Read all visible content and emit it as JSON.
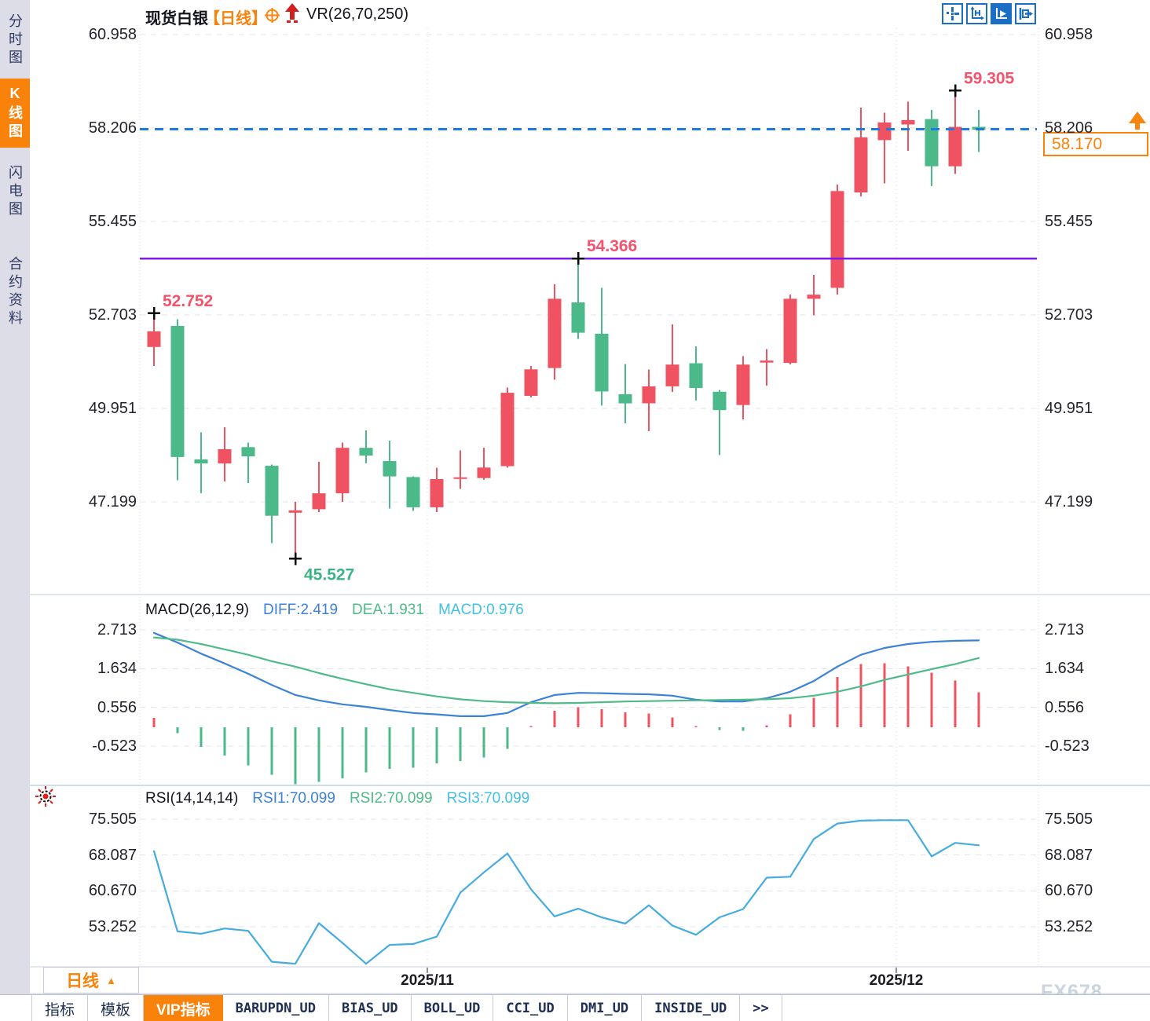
{
  "app": {
    "watermark": "FX678"
  },
  "colors": {
    "up_red": "#ef5362",
    "down_green": "#4bb989",
    "accent_orange": "#f8820a",
    "purple_line": "#7c1ce6",
    "current_price_blue": "#1c7ce0",
    "diff_blue": "#3b82d8",
    "dea_green": "#4fba8a",
    "macd_cyan": "#3fc1e3",
    "rsi_line": "#46abdf",
    "annotation_red": "#f2546e",
    "annotation_green": "#3db385",
    "toolbar_blue": "#1a6fc4",
    "grid": "#e3e4ec",
    "marker_black": "#0a0a0a"
  },
  "sidebar": {
    "items": [
      {
        "label": "分时图",
        "name": "minute-chart",
        "active": false
      },
      {
        "label": "K线图",
        "name": "kline-chart",
        "active": true
      },
      {
        "label": "闪电图",
        "name": "flash-chart",
        "active": false
      },
      {
        "label": "合约资料",
        "name": "contract-info",
        "active": false
      }
    ]
  },
  "header": {
    "symbol": "现货白银",
    "period": "【日线】",
    "indicator": "VR(26,70,250)"
  },
  "toolbar": {
    "icons": [
      "move-crosshair",
      "axis-scale",
      "axis-play",
      "export-right"
    ]
  },
  "price_tag": {
    "value": "58.170"
  },
  "axis": {
    "price_labels": [
      "60.958",
      "58.206",
      "55.455",
      "52.703",
      "49.951",
      "47.199"
    ],
    "macd_labels": [
      "2.713",
      "1.634",
      "0.556",
      "-0.523"
    ],
    "rsi_labels": [
      "75.505",
      "68.087",
      "60.670",
      "53.252"
    ]
  },
  "panes": {
    "macd_legend": {
      "title": "MACD(26,12,9)",
      "diff": "DIFF:2.419",
      "dea": "DEA:1.931",
      "macd": "MACD:0.976"
    },
    "rsi_legend": {
      "title": "RSI(14,14,14)",
      "rsi1": "RSI1:70.099",
      "rsi2": "RSI2:70.099",
      "rsi3": "RSI3:70.099"
    }
  },
  "footer": {
    "period": "日线",
    "tabs": [
      {
        "label": "指标",
        "name": "indicator",
        "mono": false,
        "active": false
      },
      {
        "label": "模板",
        "name": "template",
        "mono": false,
        "active": false
      },
      {
        "label": "VIP指标",
        "name": "vip-indicator",
        "mono": false,
        "active": true
      },
      {
        "label": "BARUPDN_UD",
        "name": "barupdn",
        "mono": true,
        "active": false
      },
      {
        "label": "BIAS_UD",
        "name": "bias",
        "mono": true,
        "active": false
      },
      {
        "label": "BOLL_UD",
        "name": "boll",
        "mono": true,
        "active": false
      },
      {
        "label": "CCI_UD",
        "name": "cci",
        "mono": true,
        "active": false
      },
      {
        "label": "DMI_UD",
        "name": "dmi",
        "mono": true,
        "active": false
      },
      {
        "label": "INSIDE_UD",
        "name": "inside",
        "mono": true,
        "active": false
      },
      {
        "label": ">>",
        "name": "more",
        "mono": true,
        "active": false
      }
    ]
  },
  "chart_data": {
    "type": "candlestick",
    "symbol": "现货白银",
    "period": "日线",
    "price_axis": [
      60.958,
      58.206,
      55.455,
      52.703,
      49.951,
      47.199
    ],
    "candles": [
      [
        51.76,
        52.75,
        51.2,
        52.22
      ],
      [
        52.38,
        52.57,
        47.83,
        48.52
      ],
      [
        48.45,
        49.25,
        47.45,
        48.33
      ],
      [
        48.33,
        49.4,
        47.8,
        48.75
      ],
      [
        48.81,
        48.95,
        47.75,
        48.54
      ],
      [
        48.26,
        48.3,
        45.98,
        46.79
      ],
      [
        46.88,
        47.2,
        45.53,
        46.95
      ],
      [
        46.98,
        48.38,
        46.9,
        47.45
      ],
      [
        47.45,
        48.95,
        47.2,
        48.79
      ],
      [
        48.79,
        49.3,
        48.33,
        48.56
      ],
      [
        48.4,
        49.0,
        47.0,
        47.95
      ],
      [
        47.93,
        47.95,
        46.93,
        47.04
      ],
      [
        47.04,
        48.21,
        46.9,
        47.87
      ],
      [
        47.9,
        48.71,
        47.58,
        47.92
      ],
      [
        47.9,
        48.79,
        47.85,
        48.21
      ],
      [
        48.25,
        50.56,
        48.2,
        50.41
      ],
      [
        50.32,
        51.2,
        50.27,
        51.1
      ],
      [
        51.14,
        53.61,
        50.79,
        53.18
      ],
      [
        53.07,
        54.37,
        52.0,
        52.18
      ],
      [
        52.15,
        53.5,
        50.03,
        50.45
      ],
      [
        50.37,
        51.26,
        49.51,
        50.1
      ],
      [
        50.1,
        51.09,
        49.28,
        50.6
      ],
      [
        50.6,
        52.43,
        50.44,
        51.24
      ],
      [
        51.28,
        51.78,
        50.18,
        50.55
      ],
      [
        50.44,
        50.5,
        48.57,
        49.9
      ],
      [
        50.05,
        51.49,
        49.63,
        51.24
      ],
      [
        51.3,
        51.7,
        50.62,
        51.36
      ],
      [
        51.29,
        53.3,
        51.25,
        53.18
      ],
      [
        53.18,
        53.88,
        52.69,
        53.3
      ],
      [
        53.5,
        56.54,
        53.3,
        56.35
      ],
      [
        56.31,
        58.81,
        56.19,
        57.93
      ],
      [
        57.85,
        58.66,
        56.58,
        58.37
      ],
      [
        58.31,
        58.98,
        57.54,
        58.44
      ],
      [
        58.47,
        58.74,
        56.5,
        57.08
      ],
      [
        57.08,
        59.3,
        56.85,
        58.24
      ],
      [
        58.24,
        58.74,
        57.5,
        58.16
      ]
    ],
    "annotations": [
      {
        "index": 0,
        "price": 52.752,
        "label": "52.752",
        "type": "high"
      },
      {
        "index": 6,
        "price": 45.527,
        "label": "45.527",
        "type": "low"
      },
      {
        "index": 18,
        "price": 54.366,
        "label": "54.366",
        "type": "high"
      },
      {
        "index": 34,
        "price": 59.305,
        "label": "59.305",
        "type": "high"
      }
    ],
    "purple_level": 54.366,
    "current_price": 58.17,
    "x_axis_labels": [
      {
        "label": "2025/11",
        "index": 11.6
      },
      {
        "label": "2025/12",
        "index": 31.5
      }
    ],
    "macd": {
      "params": "26,12,9",
      "axis": [
        2.713,
        1.634,
        0.556,
        -0.523
      ],
      "current": {
        "diff": 2.419,
        "dea": 1.931,
        "macd": 0.976
      },
      "diff": [
        2.63,
        2.36,
        2.05,
        1.78,
        1.49,
        1.18,
        0.9,
        0.75,
        0.64,
        0.57,
        0.48,
        0.4,
        0.36,
        0.31,
        0.31,
        0.4,
        0.7,
        0.9,
        0.96,
        0.95,
        0.93,
        0.92,
        0.88,
        0.77,
        0.72,
        0.72,
        0.81,
        0.99,
        1.29,
        1.69,
        2.02,
        2.21,
        2.32,
        2.38,
        2.41,
        2.42
      ],
      "dea": [
        2.5,
        2.44,
        2.32,
        2.17,
        2.02,
        1.84,
        1.69,
        1.51,
        1.35,
        1.2,
        1.06,
        0.96,
        0.86,
        0.78,
        0.73,
        0.7,
        0.68,
        0.67,
        0.68,
        0.7,
        0.72,
        0.73,
        0.74,
        0.75,
        0.76,
        0.77,
        0.78,
        0.81,
        0.88,
        0.99,
        1.14,
        1.32,
        1.47,
        1.62,
        1.76,
        1.93
      ],
      "hist": [
        0.26,
        -0.16,
        -0.54,
        -0.78,
        -1.06,
        -1.32,
        -1.58,
        -1.52,
        -1.42,
        -1.26,
        -1.16,
        -1.12,
        -1.0,
        -0.94,
        -0.84,
        -0.6,
        0.04,
        0.46,
        0.56,
        0.5,
        0.42,
        0.38,
        0.28,
        0.04,
        -0.08,
        -0.1,
        0.06,
        0.36,
        0.82,
        1.4,
        1.76,
        1.78,
        1.7,
        1.52,
        1.3,
        0.98
      ]
    },
    "rsi": {
      "params": "14,14,14",
      "axis": [
        75.505,
        68.087,
        60.67,
        53.252
      ],
      "current": 70.099,
      "values": [
        68.9,
        52.3,
        51.8,
        52.9,
        52.4,
        46.0,
        45.6,
        54.0,
        49.9,
        45.6,
        49.5,
        49.7,
        51.2,
        60.3,
        64.5,
        68.4,
        61.0,
        55.4,
        57.0,
        55.2,
        53.9,
        57.7,
        53.5,
        51.6,
        55.2,
        56.9,
        63.4,
        63.6,
        71.4,
        74.6,
        75.2,
        75.3,
        75.3,
        67.8,
        70.6,
        70.1
      ]
    }
  }
}
